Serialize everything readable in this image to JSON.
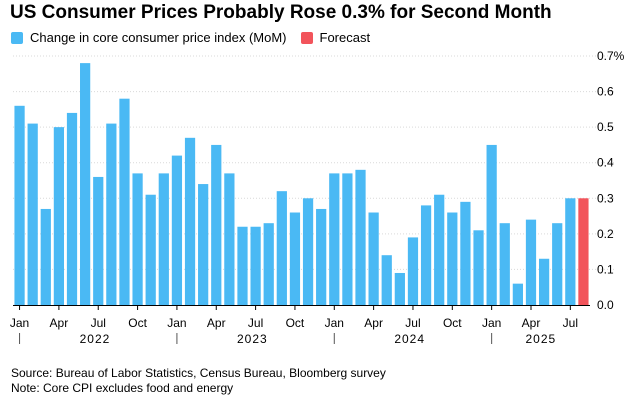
{
  "title": "US Consumer Prices Probably Rose 0.3% for Second Month",
  "legend": [
    {
      "label": "Change in core consumer price index (MoM)",
      "color": "#4ab9f4"
    },
    {
      "label": "Forecast",
      "color": "#f2545b"
    }
  ],
  "notes": {
    "source": "Source: Bureau of Labor Statistics, Census Bureau, Bloomberg survey",
    "note": "Note: Core CPI excludes food and energy"
  },
  "chart_data": {
    "type": "bar",
    "title": "US Consumer Prices Probably Rose 0.3% for Second Month",
    "xlabel": "",
    "ylabel": "",
    "ylim": [
      0,
      0.7
    ],
    "yticks": [
      "0.0",
      "0.1",
      "0.2",
      "0.3",
      "0.4",
      "0.5",
      "0.6",
      "0.7%"
    ],
    "grid": true,
    "y_axis_side": "right",
    "categories": [
      "2022-01",
      "2022-02",
      "2022-03",
      "2022-04",
      "2022-05",
      "2022-06",
      "2022-07",
      "2022-08",
      "2022-09",
      "2022-10",
      "2022-11",
      "2022-12",
      "2023-01",
      "2023-02",
      "2023-03",
      "2023-04",
      "2023-05",
      "2023-06",
      "2023-07",
      "2023-08",
      "2023-09",
      "2023-10",
      "2023-11",
      "2023-12",
      "2024-01",
      "2024-02",
      "2024-03",
      "2024-04",
      "2024-05",
      "2024-06",
      "2024-07",
      "2024-08",
      "2024-09",
      "2024-10",
      "2024-11",
      "2024-12",
      "2025-01",
      "2025-02",
      "2025-03",
      "2025-04",
      "2025-05",
      "2025-06",
      "2025-07",
      "2025-08"
    ],
    "series": [
      {
        "name": "Change in core consumer price index (MoM)",
        "color": "#4ab9f4",
        "values": [
          0.56,
          0.51,
          0.27,
          0.5,
          0.54,
          0.68,
          0.36,
          0.51,
          0.58,
          0.37,
          0.31,
          0.37,
          0.42,
          0.47,
          0.34,
          0.45,
          0.37,
          0.22,
          0.22,
          0.23,
          0.32,
          0.26,
          0.3,
          0.27,
          0.37,
          0.37,
          0.38,
          0.26,
          0.14,
          0.09,
          0.19,
          0.28,
          0.31,
          0.26,
          0.29,
          0.21,
          0.45,
          0.23,
          0.06,
          0.24,
          0.13,
          0.23,
          0.3,
          null
        ]
      },
      {
        "name": "Forecast",
        "color": "#f2545b",
        "values": [
          null,
          null,
          null,
          null,
          null,
          null,
          null,
          null,
          null,
          null,
          null,
          null,
          null,
          null,
          null,
          null,
          null,
          null,
          null,
          null,
          null,
          null,
          null,
          null,
          null,
          null,
          null,
          null,
          null,
          null,
          null,
          null,
          null,
          null,
          null,
          null,
          null,
          null,
          null,
          null,
          null,
          null,
          null,
          0.3
        ]
      }
    ],
    "month_labels": [
      {
        "index": 0,
        "label": "Jan"
      },
      {
        "index": 3,
        "label": "Apr"
      },
      {
        "index": 6,
        "label": "Jul"
      },
      {
        "index": 9,
        "label": "Oct"
      },
      {
        "index": 12,
        "label": "Jan"
      },
      {
        "index": 15,
        "label": "Apr"
      },
      {
        "index": 18,
        "label": "Jul"
      },
      {
        "index": 21,
        "label": "Oct"
      },
      {
        "index": 24,
        "label": "Jan"
      },
      {
        "index": 27,
        "label": "Apr"
      },
      {
        "index": 30,
        "label": "Jul"
      },
      {
        "index": 33,
        "label": "Oct"
      },
      {
        "index": 36,
        "label": "Jan"
      },
      {
        "index": 39,
        "label": "Apr"
      },
      {
        "index": 42,
        "label": "Jul"
      }
    ],
    "year_labels": [
      {
        "start": 0,
        "label": "2022"
      },
      {
        "start": 12,
        "label": "2023"
      },
      {
        "start": 24,
        "label": "2024"
      },
      {
        "start": 36,
        "label": "2025"
      }
    ]
  }
}
